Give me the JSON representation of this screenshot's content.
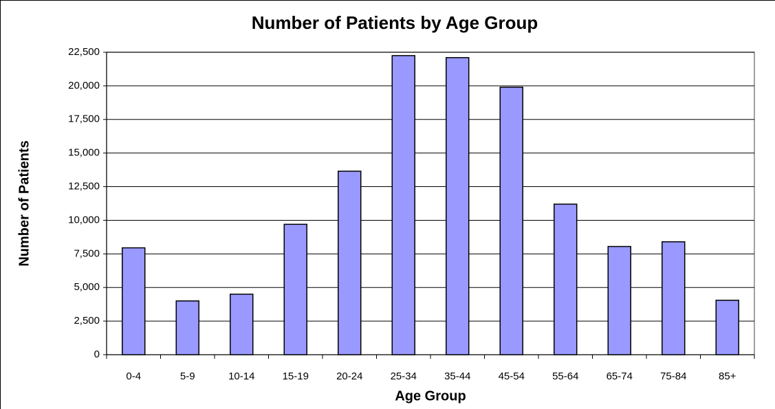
{
  "chart_data": {
    "type": "bar",
    "title": "Number of Patients by Age Group",
    "x_label": "Age Group",
    "y_label": "Number of Patients",
    "categories": [
      "0-4",
      "5-9",
      "10-14",
      "15-19",
      "20-24",
      "25-34",
      "35-44",
      "45-54",
      "55-64",
      "65-74",
      "75-84",
      "85+"
    ],
    "values": [
      7950,
      4000,
      4500,
      9700,
      13650,
      22250,
      22100,
      19900,
      11200,
      8050,
      8400,
      4050
    ],
    "color": "#9999ff",
    "ylim": [
      0,
      22500
    ],
    "yticks": [
      0,
      {
        "value": 2500,
        "label": "2,500"
      },
      {
        "value": 5000,
        "label": "5,000"
      },
      {
        "value": 7500,
        "label": "7,500"
      },
      {
        "value": 10000,
        "label": "10,000"
      },
      {
        "value": 12500,
        "label": "12,500"
      },
      {
        "value": 15000,
        "label": "15,000"
      },
      {
        "value": 17500,
        "label": "17,500"
      },
      {
        "value": 20000,
        "label": "20,000"
      },
      {
        "value": 22500,
        "label": "22,500"
      }
    ],
    "grid": true
  }
}
